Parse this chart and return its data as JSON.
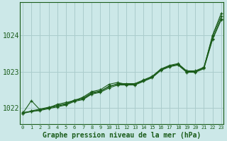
{
  "bg_color": "#cce8e8",
  "grid_color": "#aacccc",
  "line_color": "#1a5c1a",
  "xlabel": "Graphe pression niveau de la mer (hPa)",
  "xlabel_color": "#1a5c1a",
  "ylabel_ticks": [
    1022,
    1023,
    1024
  ],
  "xticks": [
    0,
    1,
    2,
    3,
    4,
    5,
    6,
    7,
    8,
    9,
    10,
    11,
    12,
    13,
    14,
    15,
    16,
    17,
    18,
    19,
    20,
    21,
    22,
    23
  ],
  "ylim": [
    1021.55,
    1024.9
  ],
  "xlim": [
    -0.3,
    23.3
  ],
  "series": [
    [
      1021.85,
      1022.2,
      1021.95,
      1022.0,
      1022.1,
      1022.15,
      1022.2,
      1022.3,
      1022.45,
      1022.5,
      1022.65,
      1022.7,
      1022.65,
      1022.65,
      1022.75,
      1022.85,
      1023.05,
      1023.15,
      1023.2,
      1023.0,
      1023.0,
      1023.1,
      1024.0,
      1024.6
    ],
    [
      1021.85,
      1021.92,
      1021.97,
      1022.02,
      1022.07,
      1022.12,
      1022.22,
      1022.27,
      1022.42,
      1022.47,
      1022.58,
      1022.67,
      1022.67,
      1022.67,
      1022.77,
      1022.87,
      1023.07,
      1023.17,
      1023.22,
      1023.02,
      1023.02,
      1023.12,
      1023.97,
      1024.52
    ],
    [
      1021.85,
      1021.9,
      1021.95,
      1022.0,
      1022.05,
      1022.1,
      1022.2,
      1022.25,
      1022.4,
      1022.45,
      1022.6,
      1022.65,
      1022.65,
      1022.65,
      1022.75,
      1022.85,
      1023.05,
      1023.15,
      1023.2,
      1023.0,
      1023.0,
      1023.1,
      1023.9,
      1024.45
    ],
    [
      1021.88,
      1021.9,
      1021.93,
      1021.98,
      1022.03,
      1022.08,
      1022.18,
      1022.23,
      1022.38,
      1022.43,
      1022.55,
      1022.63,
      1022.63,
      1022.63,
      1022.73,
      1022.83,
      1023.03,
      1023.13,
      1023.18,
      1022.98,
      1022.98,
      1023.08,
      1023.88,
      1024.42
    ]
  ]
}
